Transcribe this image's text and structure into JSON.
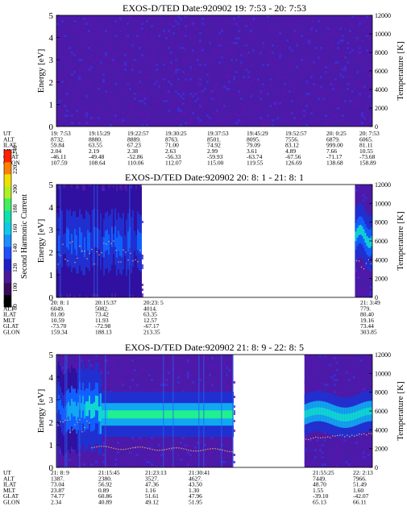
{
  "colorbar": {
    "label": "Second Harmonic Current",
    "ticks": [
      "80",
      "100",
      "120",
      "140",
      "160",
      "180",
      "200",
      "220",
      "240"
    ],
    "range": [
      80,
      240
    ],
    "colors": [
      "#000000",
      "#3a0a5e",
      "#4b1a9a",
      "#2020c8",
      "#1e50ff",
      "#1890ff",
      "#10c8e8",
      "#10e0b0",
      "#40f060",
      "#b0f020",
      "#f0e000",
      "#ff8000",
      "#ff2000"
    ]
  },
  "chart_data": [
    {
      "type": "heatmap",
      "title": "EXOS-D/TED   Date:920902  19: 7:53 - 20: 7:53",
      "ylabel": "Energy [eV]",
      "y2label": "Temperature [K]",
      "ylim": [
        0,
        5
      ],
      "y2lim": [
        0,
        12000
      ],
      "yticks": [
        "0",
        "1",
        "2",
        "3",
        "4",
        "5"
      ],
      "y2ticks": [
        "0",
        "2000",
        "4000",
        "6000",
        "8000",
        "10000",
        "12000"
      ],
      "data_coverage": [
        [
          0,
          1
        ]
      ],
      "ephemeris": {
        "labels": [
          "UT",
          "ALT",
          "ILAT",
          "MLT",
          "GLAT",
          "GLON"
        ],
        "columns": [
          {
            "ut": "19: 7:53",
            "alt": "8732.",
            "ilat": "59.84",
            "mlt": "2.04",
            "glat": "-46.11",
            "glon": "107.59"
          },
          {
            "ut": "19:15:29",
            "alt": "8880.",
            "ilat": "63.55",
            "mlt": "2.19",
            "glat": "-49.48",
            "glon": "108.64"
          },
          {
            "ut": "19:22:57",
            "alt": "8889.",
            "ilat": "67.23",
            "mlt": "2.38",
            "glat": "-52.86",
            "glon": "110.06"
          },
          {
            "ut": "19:30:25",
            "alt": "8763.",
            "ilat": "71.00",
            "mlt": "2.63",
            "glat": "-56.33",
            "glon": "112.07"
          },
          {
            "ut": "19:37:53",
            "alt": "8501.",
            "ilat": "74.92",
            "mlt": "2.99",
            "glat": "-59.93",
            "glon": "115.00"
          },
          {
            "ut": "19:45:29",
            "alt": "8095.",
            "ilat": "79.09",
            "mlt": "3.61",
            "glat": "-63.74",
            "glon": "119.55"
          },
          {
            "ut": "19:52:57",
            "alt": "7556.",
            "ilat": "83.12",
            "mlt": "4.89",
            "glat": "-67.56",
            "glon": "126.69"
          },
          {
            "ut": "20: 0:25",
            "alt": "6879.",
            "ilat": "999.00",
            "mlt": "7.66",
            "glat": "-71.17",
            "glon": "138.68"
          },
          {
            "ut": "20: 7:53",
            "alt": "6065.",
            "ilat": "81.11",
            "mlt": "10.55",
            "glat": "-73.68",
            "glon": "158.89"
          }
        ]
      }
    },
    {
      "type": "heatmap",
      "title": "EXOS-D/TED   Date:920902  20: 8: 1 - 21: 8: 1",
      "ylabel": "Energy [eV]",
      "y2label": "Temperature [K]",
      "ylim": [
        0,
        5
      ],
      "y2lim": [
        0,
        12000
      ],
      "yticks": [
        "0",
        "1",
        "2",
        "3",
        "4",
        "5"
      ],
      "y2ticks": [
        "0",
        "2000",
        "4000",
        "6000",
        "8000",
        "10000",
        "12000"
      ],
      "data_coverage": [
        [
          0,
          0.27
        ],
        [
          0.945,
          1
        ]
      ],
      "ephemeris": {
        "labels": [
          "UT",
          "ALT",
          "ILAT",
          "MLT",
          "GLAT",
          "GLON"
        ],
        "columns": [
          {
            "ut": "20: 8: 1",
            "alt": "6049.",
            "ilat": "81.00",
            "mlt": "10.59",
            "glat": "-73.70",
            "glon": "159.34"
          },
          {
            "ut": "20:15:37",
            "alt": "5082.",
            "ilat": "73.42",
            "mlt": "11.93",
            "glat": "-72.98",
            "glon": "188.13"
          },
          {
            "ut": "20:23: 5",
            "alt": "4014.",
            "ilat": "63.35",
            "mlt": "12.57",
            "glat": "-67.17",
            "glon": "213.35"
          },
          {
            "ut": "21: 3:49",
            "alt": "779.",
            "ilat": "80.40",
            "mlt": "19.16",
            "glat": "73.44",
            "glon": "303.85"
          }
        ]
      }
    },
    {
      "type": "heatmap",
      "title": "EXOS-D/TED   Date:920902  21: 8: 9 - 22: 8: 5",
      "ylabel": "Energy [eV]",
      "y2label": "Temperature [K]",
      "ylim": [
        0,
        5
      ],
      "y2lim": [
        0,
        12000
      ],
      "yticks": [
        "0",
        "1",
        "2",
        "3",
        "4",
        "5"
      ],
      "y2ticks": [
        "0",
        "2000",
        "4000",
        "6000",
        "8000",
        "10000",
        "12000"
      ],
      "data_coverage": [
        [
          0,
          0.56
        ],
        [
          0.785,
          1
        ]
      ],
      "ephemeris": {
        "labels": [
          "UT",
          "ALT",
          "ILAT",
          "MLT",
          "GLAT",
          "GLON"
        ],
        "columns": [
          {
            "ut": "21: 8: 9",
            "alt": "1387.",
            "ilat": "73.04",
            "mlt": "23.87",
            "glat": "74.77",
            "glon": "2.34"
          },
          {
            "ut": "21:15:45",
            "alt": "2380.",
            "ilat": "56.92",
            "mlt": "0.89",
            "glat": "60.86",
            "glon": "40.89"
          },
          {
            "ut": "21:23:13",
            "alt": "3527.",
            "ilat": "47.36",
            "mlt": "1.16",
            "glat": "51.61",
            "glon": "49.12"
          },
          {
            "ut": "21:30:41",
            "alt": "4627.",
            "ilat": "43.50",
            "mlt": "1.30",
            "glat": "47.96",
            "glon": "51.95"
          },
          {
            "ut": "21:55:25",
            "alt": "7449.",
            "ilat": "48.70",
            "mlt": "1.55",
            "glat": "-39.10",
            "glon": "65.13"
          },
          {
            "ut": "22: 2:13",
            "alt": "7966.",
            "ilat": "51.49",
            "mlt": "1.60",
            "glat": "-42.07",
            "glon": "66.11"
          }
        ]
      }
    }
  ]
}
